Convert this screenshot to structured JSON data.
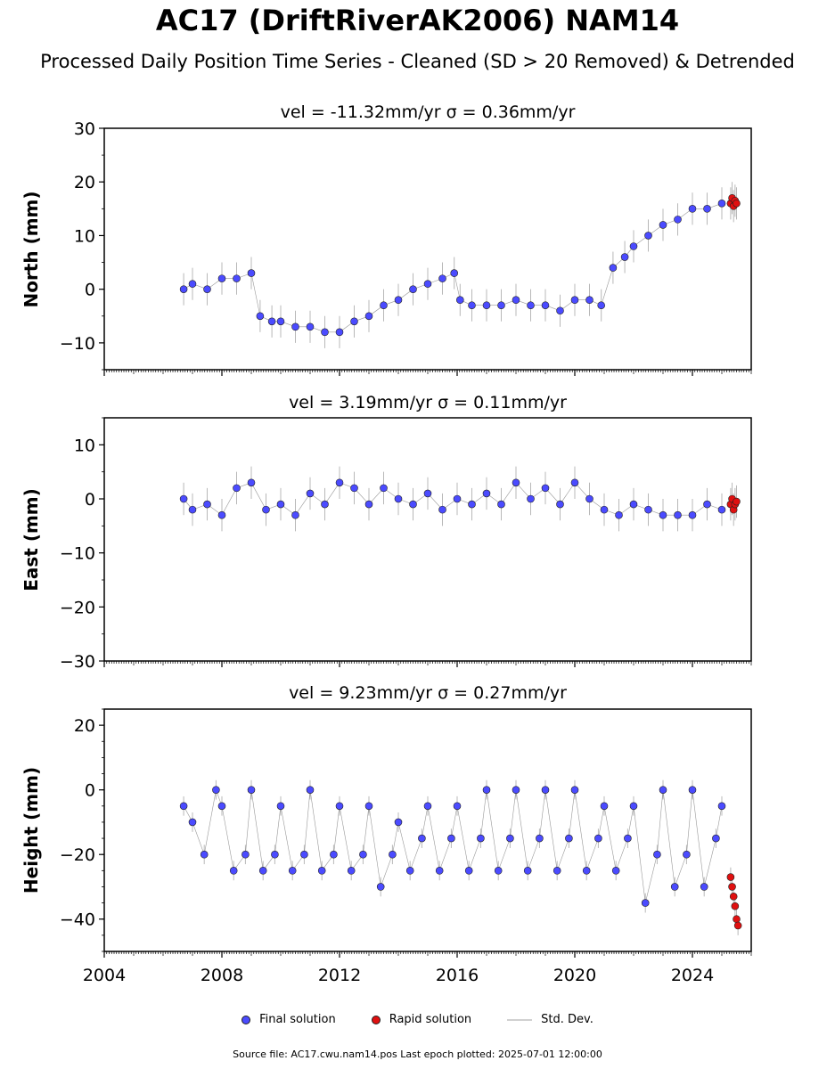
{
  "title": "AC17 (DriftRiverAK2006) NAM14",
  "subtitle": "Processed Daily Position Time Series - Cleaned (SD > 20 Removed) & Detrended",
  "legend": {
    "final": "Final solution",
    "rapid": "Rapid solution",
    "stddev": "Std. Dev."
  },
  "footer": "Source file: AC17.cwu.nam14.pos  Last epoch plotted: 2025-07-01 12:00:00",
  "colors": {
    "final": "#4b4bff",
    "rapid": "#e01010",
    "stddev": "#b8b8b8"
  },
  "chart_data": [
    {
      "type": "scatter",
      "title": "vel = -11.32mm/yr   σ = 0.36mm/yr",
      "ylabel": "North (mm)",
      "xlim": [
        2004,
        2026
      ],
      "ylim": [
        -15,
        30
      ],
      "yticks": [
        -10,
        0,
        10,
        20,
        30
      ],
      "ytick_labels": [
        "−10",
        "0",
        "10",
        "20",
        "30"
      ],
      "series": [
        {
          "name": "Final solution",
          "x": [
            2006.7,
            2007.0,
            2007.5,
            2008.0,
            2008.5,
            2009.0,
            2009.3,
            2009.7,
            2010.0,
            2010.5,
            2011.0,
            2011.5,
            2012.0,
            2012.5,
            2013.0,
            2013.5,
            2014.0,
            2014.5,
            2015.0,
            2015.5,
            2015.9,
            2016.1,
            2016.5,
            2017.0,
            2017.5,
            2018.0,
            2018.5,
            2019.0,
            2019.5,
            2020.0,
            2020.5,
            2020.9,
            2021.3,
            2021.7,
            2022.0,
            2022.5,
            2023.0,
            2023.5,
            2024.0,
            2024.5,
            2025.0
          ],
          "y": [
            0,
            1,
            0,
            2,
            2,
            3,
            -5,
            -6,
            -6,
            -7,
            -7,
            -8,
            -8,
            -6,
            -5,
            -3,
            -2,
            0,
            1,
            2,
            3,
            -2,
            -3,
            -3,
            -3,
            -2,
            -3,
            -3,
            -4,
            -2,
            -2,
            -3,
            4,
            6,
            8,
            10,
            12,
            13,
            15,
            15,
            16
          ]
        },
        {
          "name": "Rapid solution",
          "x": [
            2025.3,
            2025.35,
            2025.4,
            2025.45,
            2025.5
          ],
          "y": [
            16,
            17,
            15.5,
            16.5,
            16
          ]
        }
      ]
    },
    {
      "type": "scatter",
      "title": "vel = 3.19mm/yr   σ = 0.11mm/yr",
      "ylabel": "East (mm)",
      "xlim": [
        2004,
        2026
      ],
      "ylim": [
        -30,
        15
      ],
      "yticks": [
        -30,
        -20,
        -10,
        0,
        10
      ],
      "ytick_labels": [
        "−30",
        "−20",
        "−10",
        "0",
        "10"
      ],
      "series": [
        {
          "name": "Final solution",
          "x": [
            2006.7,
            2007.0,
            2007.5,
            2008.0,
            2008.5,
            2009.0,
            2009.5,
            2010.0,
            2010.5,
            2011.0,
            2011.5,
            2012.0,
            2012.5,
            2013.0,
            2013.5,
            2014.0,
            2014.5,
            2015.0,
            2015.5,
            2016.0,
            2016.5,
            2017.0,
            2017.5,
            2018.0,
            2018.5,
            2019.0,
            2019.5,
            2020.0,
            2020.5,
            2021.0,
            2021.5,
            2022.0,
            2022.5,
            2023.0,
            2023.5,
            2024.0,
            2024.5,
            2025.0
          ],
          "y": [
            0,
            -2,
            -1,
            -3,
            2,
            3,
            -2,
            -1,
            -3,
            1,
            -1,
            3,
            2,
            -1,
            2,
            0,
            -1,
            1,
            -2,
            0,
            -1,
            1,
            -1,
            3,
            0,
            2,
            -1,
            3,
            0,
            -2,
            -3,
            -1,
            -2,
            -3,
            -3,
            -3,
            -1,
            -2
          ]
        },
        {
          "name": "Rapid solution",
          "x": [
            2025.3,
            2025.35,
            2025.4,
            2025.45,
            2025.5
          ],
          "y": [
            -1,
            0,
            -2,
            -1,
            -0.5
          ]
        }
      ]
    },
    {
      "type": "scatter",
      "title": "vel = 9.23mm/yr   σ = 0.27mm/yr",
      "ylabel": "Height (mm)",
      "xlim": [
        2004,
        2026
      ],
      "ylim": [
        -50,
        25
      ],
      "yticks": [
        -40,
        -20,
        0,
        20
      ],
      "ytick_labels": [
        "−40",
        "−20",
        "0",
        "20"
      ],
      "xticks": [
        2004,
        2008,
        2012,
        2016,
        2020,
        2024
      ],
      "xtick_labels": [
        "2004",
        "2008",
        "2012",
        "2016",
        "2020",
        "2024"
      ],
      "series": [
        {
          "name": "Final solution",
          "x": [
            2006.7,
            2007.0,
            2007.4,
            2007.8,
            2008.0,
            2008.4,
            2008.8,
            2009.0,
            2009.4,
            2009.8,
            2010.0,
            2010.4,
            2010.8,
            2011.0,
            2011.4,
            2011.8,
            2012.0,
            2012.4,
            2012.8,
            2013.0,
            2013.4,
            2013.8,
            2014.0,
            2014.4,
            2014.8,
            2015.0,
            2015.4,
            2015.8,
            2016.0,
            2016.4,
            2016.8,
            2017.0,
            2017.4,
            2017.8,
            2018.0,
            2018.4,
            2018.8,
            2019.0,
            2019.4,
            2019.8,
            2020.0,
            2020.4,
            2020.8,
            2021.0,
            2021.4,
            2021.8,
            2022.0,
            2022.4,
            2022.8,
            2023.0,
            2023.4,
            2023.8,
            2024.0,
            2024.4,
            2024.8,
            2025.0
          ],
          "y": [
            -5,
            -10,
            -20,
            0,
            -5,
            -25,
            -20,
            0,
            -25,
            -20,
            -5,
            -25,
            -20,
            0,
            -25,
            -20,
            -5,
            -25,
            -20,
            -5,
            -30,
            -20,
            -10,
            -25,
            -15,
            -5,
            -25,
            -15,
            -5,
            -25,
            -15,
            0,
            -25,
            -15,
            0,
            -25,
            -15,
            0,
            -25,
            -15,
            0,
            -25,
            -15,
            -5,
            -25,
            -15,
            -5,
            -35,
            -20,
            0,
            -30,
            -20,
            0,
            -30,
            -15,
            -5
          ]
        },
        {
          "name": "Rapid solution",
          "x": [
            2025.3,
            2025.35,
            2025.4,
            2025.45,
            2025.5,
            2025.55
          ],
          "y": [
            -27,
            -30,
            -33,
            -36,
            -40,
            -42
          ]
        }
      ]
    }
  ]
}
